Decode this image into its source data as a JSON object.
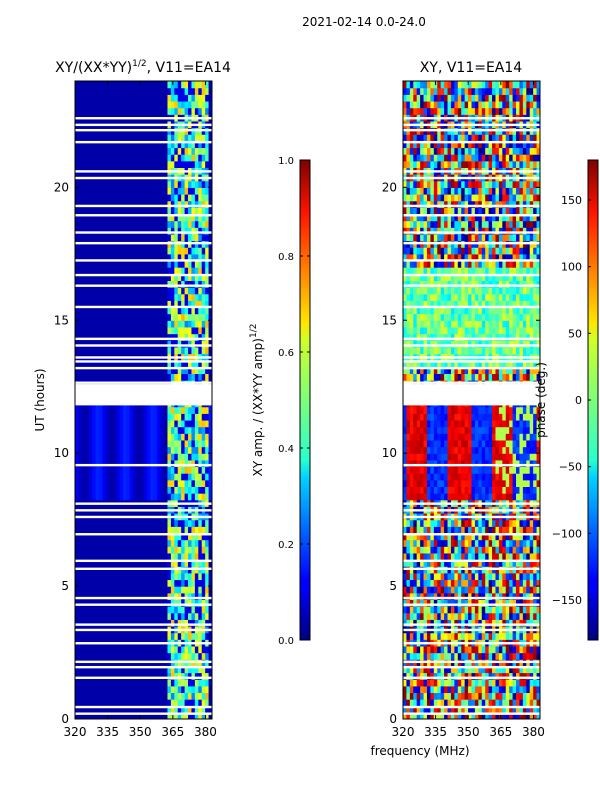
{
  "figure": {
    "suptitle": "2021-02-14 0.0-24.0",
    "xlabel": "frequency (MHz)"
  },
  "chart_data": [
    {
      "type": "heatmap",
      "title": "XY/(XX*YY)",
      "title_superscript": "1/2",
      "title_suffix": ", V11=EA14",
      "ylabel": "UT (hours)",
      "xlim": [
        320,
        383
      ],
      "ylim": [
        0,
        24
      ],
      "xticks": [
        320,
        335,
        350,
        365,
        380
      ],
      "yticks": [
        0,
        5,
        10,
        15,
        20
      ],
      "colormap": "jet",
      "colorbar": {
        "label": "XY amp. / (XX*YY amp)",
        "label_superscript": "1/2",
        "range": [
          0.0,
          1.0
        ],
        "ticks": [
          "0.0",
          "0.2",
          "0.4",
          "0.6",
          "0.8",
          "1.0"
        ]
      },
      "description_values": {
        "background_level": 0.05,
        "signal_band_mhz": [
          362,
          381
        ],
        "signal_level_range": [
          0.2,
          0.7
        ],
        "flag_gap_hours": [
          11.8,
          12.6
        ]
      }
    },
    {
      "type": "heatmap",
      "title": "XY, V11=EA14",
      "xlim": [
        320,
        383
      ],
      "ylim": [
        0,
        24
      ],
      "xticks": [
        320,
        335,
        350,
        365,
        380
      ],
      "yticks": [
        0,
        5,
        10,
        15,
        20
      ],
      "colormap": "jet",
      "colorbar": {
        "label": "phase (deg.)",
        "range": [
          -180,
          180
        ],
        "ticks": [
          -150,
          -100,
          -50,
          0,
          50,
          100,
          150
        ]
      },
      "description_values": {
        "phase_range_deg": [
          -180,
          180
        ],
        "flag_gap_hours": [
          11.8,
          12.6
        ]
      }
    }
  ]
}
